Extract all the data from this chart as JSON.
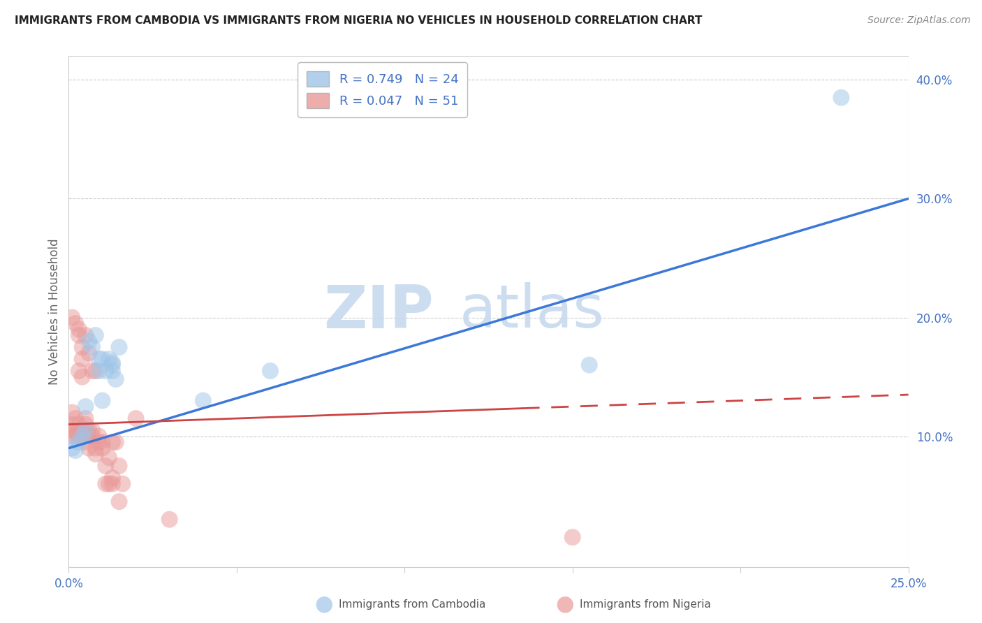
{
  "title": "IMMIGRANTS FROM CAMBODIA VS IMMIGRANTS FROM NIGERIA NO VEHICLES IN HOUSEHOLD CORRELATION CHART",
  "source": "Source: ZipAtlas.com",
  "ylabel": "No Vehicles in Household",
  "xlim": [
    0.0,
    0.25
  ],
  "ylim": [
    -0.01,
    0.42
  ],
  "xticks": [
    0.0,
    0.05,
    0.1,
    0.15,
    0.2,
    0.25
  ],
  "yticks_right": [
    0.1,
    0.2,
    0.3,
    0.4
  ],
  "ytick_labels_right": [
    "10.0%",
    "20.0%",
    "30.0%",
    "40.0%"
  ],
  "xtick_labels": [
    "0.0%",
    "",
    "",
    "",
    "",
    "25.0%"
  ],
  "legend_r1": "R = 0.749",
  "legend_n1": "N = 24",
  "legend_r2": "R = 0.047",
  "legend_n2": "N = 51",
  "color_cambodia": "#9fc5e8",
  "color_nigeria": "#ea9999",
  "color_cambodia_line": "#3c78d8",
  "color_nigeria_line": "#cc4444",
  "color_axis_labels": "#4472c4",
  "watermark_zip": "ZIP",
  "watermark_atlas": "atlas",
  "cambodia_line_x0": 0.0,
  "cambodia_line_y0": 0.09,
  "cambodia_line_x1": 0.25,
  "cambodia_line_y1": 0.3,
  "nigeria_line_x0": 0.0,
  "nigeria_line_y0": 0.11,
  "nigeria_line_x1": 0.25,
  "nigeria_line_y1": 0.135,
  "cambodia_x": [
    0.001,
    0.002,
    0.003,
    0.004,
    0.005,
    0.005,
    0.006,
    0.007,
    0.008,
    0.009,
    0.009,
    0.01,
    0.01,
    0.011,
    0.012,
    0.013,
    0.013,
    0.013,
    0.014,
    0.015,
    0.04,
    0.06,
    0.155,
    0.23
  ],
  "cambodia_y": [
    0.09,
    0.088,
    0.095,
    0.1,
    0.125,
    0.105,
    0.18,
    0.175,
    0.185,
    0.155,
    0.165,
    0.13,
    0.165,
    0.155,
    0.165,
    0.16,
    0.162,
    0.155,
    0.148,
    0.175,
    0.13,
    0.155,
    0.16,
    0.385
  ],
  "nigeria_x": [
    0.001,
    0.001,
    0.001,
    0.001,
    0.001,
    0.002,
    0.002,
    0.002,
    0.002,
    0.003,
    0.003,
    0.003,
    0.003,
    0.003,
    0.004,
    0.004,
    0.004,
    0.004,
    0.005,
    0.005,
    0.005,
    0.005,
    0.005,
    0.006,
    0.006,
    0.006,
    0.006,
    0.007,
    0.007,
    0.007,
    0.008,
    0.008,
    0.008,
    0.009,
    0.009,
    0.01,
    0.01,
    0.011,
    0.011,
    0.012,
    0.012,
    0.013,
    0.013,
    0.013,
    0.014,
    0.015,
    0.015,
    0.016,
    0.02,
    0.03,
    0.15
  ],
  "nigeria_y": [
    0.1,
    0.11,
    0.105,
    0.12,
    0.2,
    0.1,
    0.105,
    0.195,
    0.115,
    0.11,
    0.1,
    0.19,
    0.185,
    0.155,
    0.1,
    0.15,
    0.165,
    0.175,
    0.105,
    0.11,
    0.115,
    0.095,
    0.185,
    0.1,
    0.105,
    0.17,
    0.09,
    0.1,
    0.105,
    0.155,
    0.085,
    0.09,
    0.155,
    0.095,
    0.1,
    0.09,
    0.095,
    0.06,
    0.075,
    0.06,
    0.082,
    0.06,
    0.065,
    0.095,
    0.095,
    0.045,
    0.075,
    0.06,
    0.115,
    0.03,
    0.015
  ]
}
